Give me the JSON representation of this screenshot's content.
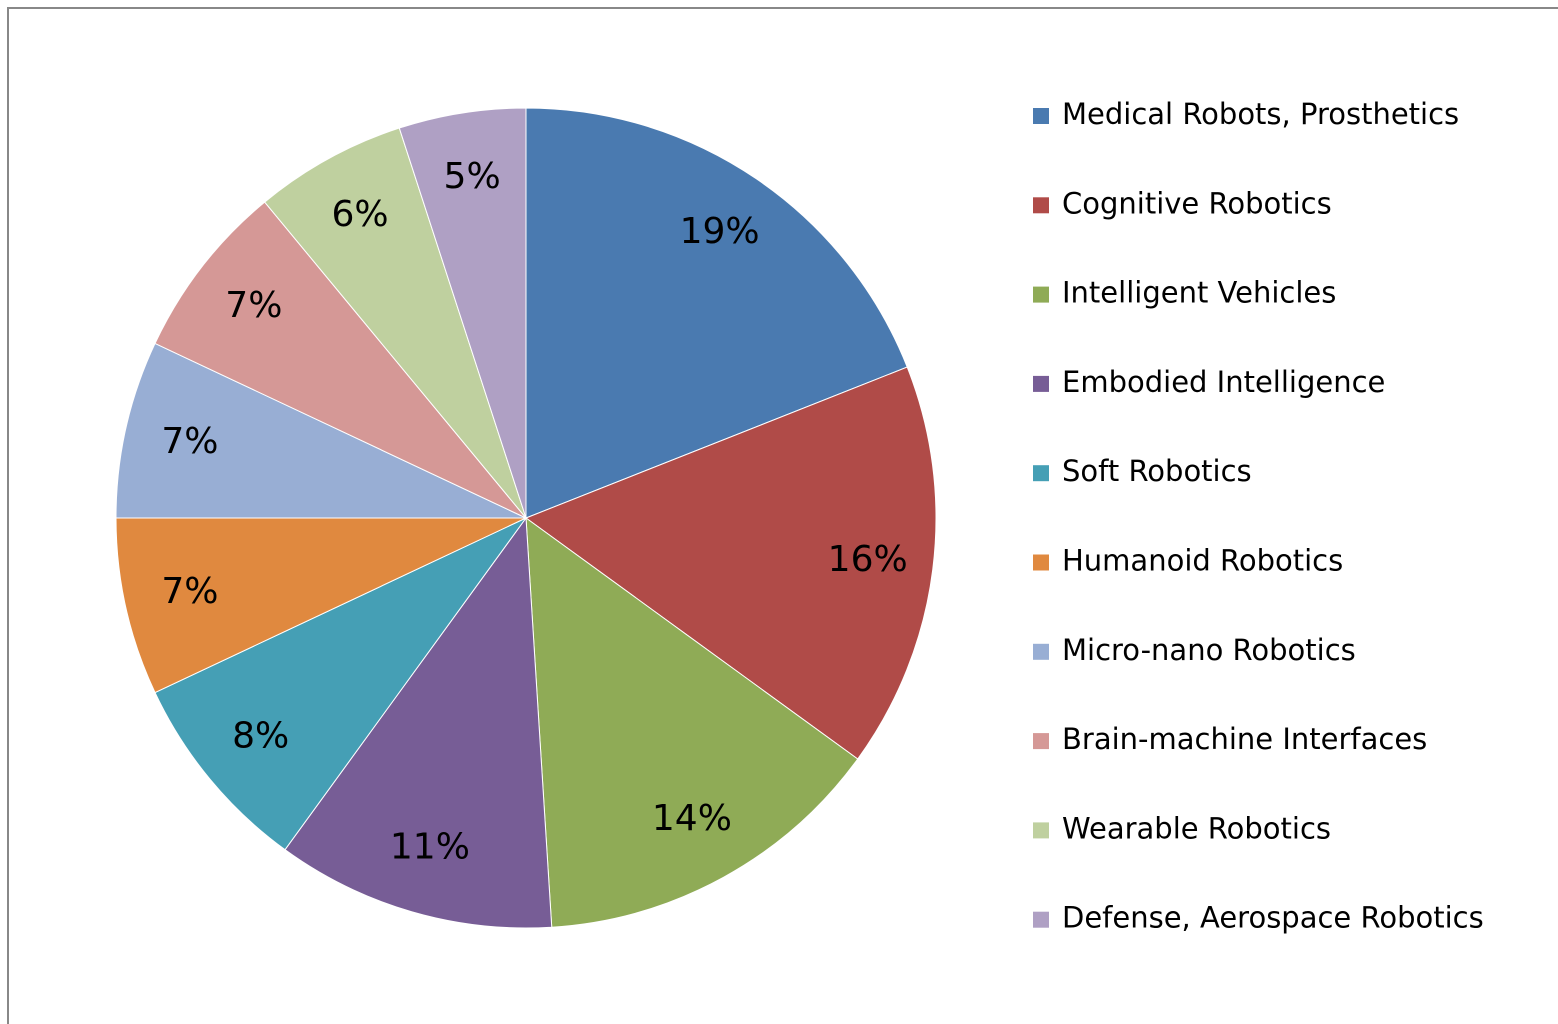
{
  "chart_data": {
    "type": "pie",
    "categories": [
      "Medical Robots, Prosthetics",
      "Cognitive Robotics",
      "Intelligent Vehicles",
      "Embodied Intelligence",
      "Soft Robotics",
      "Humanoid Robotics",
      "Micro-nano Robotics",
      "Brain-machine Interfaces",
      "Wearable Robotics",
      "Defense, Aerospace Robotics"
    ],
    "values": [
      19,
      16,
      14,
      11,
      8,
      7,
      7,
      7,
      6,
      5
    ],
    "value_labels": [
      "19%",
      "16%",
      "14%",
      "11%",
      "8%",
      "7%",
      "7%",
      "7%",
      "6%",
      "5%"
    ],
    "colors": [
      "#4a7ab0",
      "#b04b48",
      "#8fab56",
      "#775d96",
      "#459fb5",
      "#e0893f",
      "#98aed4",
      "#d59896",
      "#bfd09f",
      "#afa0c4"
    ],
    "legend": "right"
  }
}
